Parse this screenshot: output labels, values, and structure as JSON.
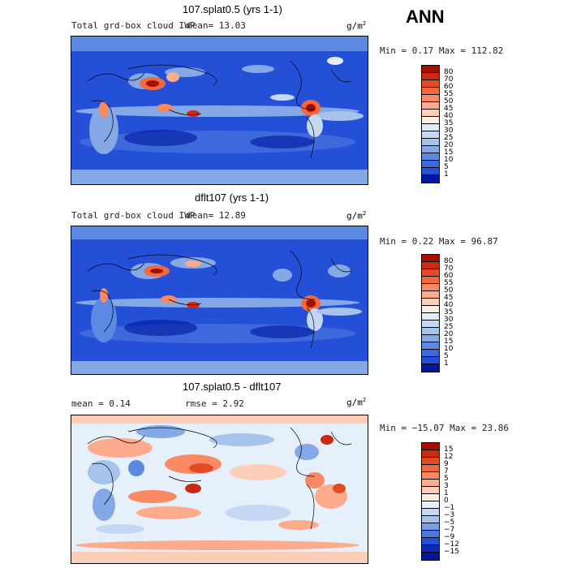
{
  "season": "ANN",
  "panels": [
    {
      "title": "107.splat0.5 (yrs 1-1)",
      "left_label": "Total grd-box cloud IWP",
      "mean_label": "mean=  13.03",
      "units_base": "g/m",
      "units_exp": "2",
      "minmax": "Min =   0.17 Max = 112.82",
      "levels": [
        "80",
        "70",
        "60",
        "55",
        "50",
        "45",
        "40",
        "35",
        "30",
        "25",
        "20",
        "15",
        "10",
        "5",
        "1"
      ],
      "colors": [
        "#a50f00",
        "#c92a10",
        "#e34a26",
        "#f2693f",
        "#f98a63",
        "#fcac8c",
        "#fdcfb8",
        "#fdeee2",
        "#e0ecf8",
        "#c4d8f3",
        "#a6c3ec",
        "#85a9e6",
        "#5c89e2",
        "#3e69dc",
        "#2450d8",
        "#00169e"
      ]
    },
    {
      "title": "dflt107 (yrs 1-1)",
      "left_label": "Total grd-box cloud IWP",
      "mean_label": "mean=  12.89",
      "units_base": "g/m",
      "units_exp": "2",
      "minmax": "Min =   0.22 Max =  96.87",
      "levels": [
        "80",
        "70",
        "60",
        "55",
        "50",
        "45",
        "40",
        "35",
        "30",
        "25",
        "20",
        "15",
        "10",
        "5",
        "1"
      ],
      "colors": [
        "#a50f00",
        "#c92a10",
        "#e34a26",
        "#f2693f",
        "#f98a63",
        "#fcac8c",
        "#fdcfb8",
        "#fdeee2",
        "#e0ecf8",
        "#c4d8f3",
        "#a6c3ec",
        "#85a9e6",
        "#5c89e2",
        "#3e69dc",
        "#2450d8",
        "#00169e"
      ]
    },
    {
      "title": "107.splat0.5 - dflt107",
      "left_label": "mean =   0.14",
      "mean_label": "rmse =   2.92",
      "units_base": "g/m",
      "units_exp": "2",
      "minmax": "Min = −15.07 Max =  23.86",
      "levels": [
        "15",
        "12",
        "9",
        "7",
        "5",
        "3",
        "1",
        "0",
        "−1",
        "−3",
        "−5",
        "−7",
        "−9",
        "−12",
        "−15"
      ],
      "colors": [
        "#a50f00",
        "#c92a10",
        "#e34a26",
        "#f2693f",
        "#f98a63",
        "#fcac8c",
        "#fdcfb8",
        "#fdeee2",
        "#e6f0fa",
        "#c4d8f3",
        "#a6c3ec",
        "#7a9fe6",
        "#4d79df",
        "#2550d6",
        "#0a2bb8",
        "#00169e"
      ]
    }
  ]
}
